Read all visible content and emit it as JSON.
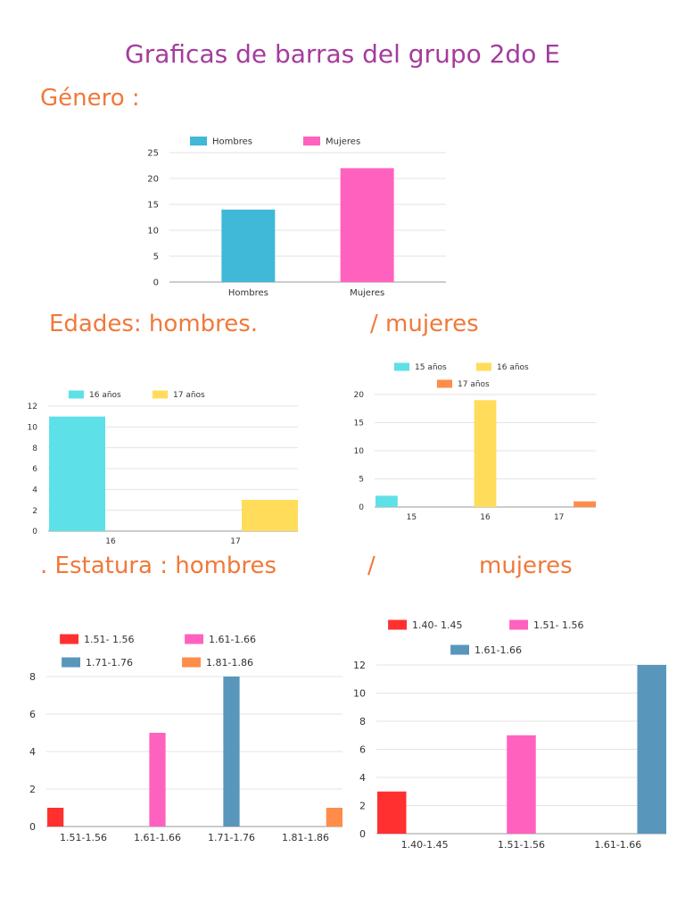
{
  "page": {
    "title": "Graficas de barras del grupo 2do E",
    "heading_genero": "Género :",
    "heading_edades_left": "Edades: hombres.",
    "heading_edades_right": "/ mujeres",
    "heading_estatura_left": ". Estatura : hombres",
    "heading_estatura_slash": "/",
    "heading_estatura_right": "mujeres"
  },
  "chart_data": [
    {
      "id": "genero",
      "type": "bar",
      "categories": [
        "Hombres",
        "Mujeres"
      ],
      "series": [
        {
          "name": "Hombres",
          "color": "#40b8d8",
          "values": [
            14,
            0
          ]
        },
        {
          "name": "Mujeres",
          "color": "#ff62be",
          "values": [
            0,
            22
          ]
        }
      ],
      "yticks": [
        0,
        5,
        10,
        15,
        20,
        25
      ],
      "ylim": [
        0,
        25
      ],
      "grid": true,
      "legend": "top"
    },
    {
      "id": "edades_hombres",
      "type": "bar",
      "categories": [
        "16",
        "17"
      ],
      "series": [
        {
          "name": "16 años",
          "color": "#5ee0e8",
          "values": [
            11,
            0
          ]
        },
        {
          "name": "17 años",
          "color": "#ffdc5a",
          "values": [
            0,
            3
          ]
        }
      ],
      "yticks": [
        0,
        2,
        4,
        6,
        8,
        10,
        12
      ],
      "ylim": [
        0,
        12
      ],
      "grid": true,
      "legend": "top"
    },
    {
      "id": "edades_mujeres",
      "type": "bar",
      "categories": [
        "15",
        "16",
        "17"
      ],
      "series": [
        {
          "name": "15 años",
          "color": "#5ee0e8",
          "values": [
            2,
            0,
            0
          ]
        },
        {
          "name": "16 años",
          "color": "#ffdc5a",
          "values": [
            0,
            19,
            0
          ]
        },
        {
          "name": "17 años",
          "color": "#ff8c48",
          "values": [
            0,
            0,
            1
          ]
        }
      ],
      "yticks": [
        0,
        5,
        10,
        15,
        20
      ],
      "ylim": [
        0,
        20
      ],
      "grid": true,
      "legend": "top"
    },
    {
      "id": "estatura_hombres",
      "type": "bar",
      "categories": [
        "1.51-1.56",
        "1.61-1.66",
        "1.71-1.76",
        "1.81-1.86"
      ],
      "series": [
        {
          "name": "1.51- 1.56",
          "color": "#ff3030",
          "values": [
            1,
            0,
            0,
            0
          ]
        },
        {
          "name": "1.61-1.66",
          "color": "#ff62be",
          "values": [
            0,
            5,
            0,
            0
          ]
        },
        {
          "name": "1.71-1.76",
          "color": "#5896bc",
          "values": [
            0,
            0,
            8,
            0
          ]
        },
        {
          "name": "1.81-1.86",
          "color": "#ff8c48",
          "values": [
            0,
            0,
            0,
            1
          ]
        }
      ],
      "yticks": [
        0,
        2,
        4,
        6,
        8
      ],
      "ylim": [
        0,
        8
      ],
      "grid": true,
      "legend": "top"
    },
    {
      "id": "estatura_mujeres",
      "type": "bar",
      "categories": [
        "1.40-1.45",
        "1.51-1.56",
        "1.61-1.66"
      ],
      "series": [
        {
          "name": "1.40- 1.45",
          "color": "#ff3030",
          "values": [
            3,
            0,
            0
          ]
        },
        {
          "name": "1.51- 1.56",
          "color": "#ff62be",
          "values": [
            0,
            7,
            0
          ]
        },
        {
          "name": "1.61-1.66",
          "color": "#5896bc",
          "values": [
            0,
            0,
            12
          ]
        }
      ],
      "yticks": [
        0,
        2,
        4,
        6,
        8,
        10,
        12
      ],
      "ylim": [
        0,
        12
      ],
      "grid": true,
      "legend": "top"
    }
  ]
}
